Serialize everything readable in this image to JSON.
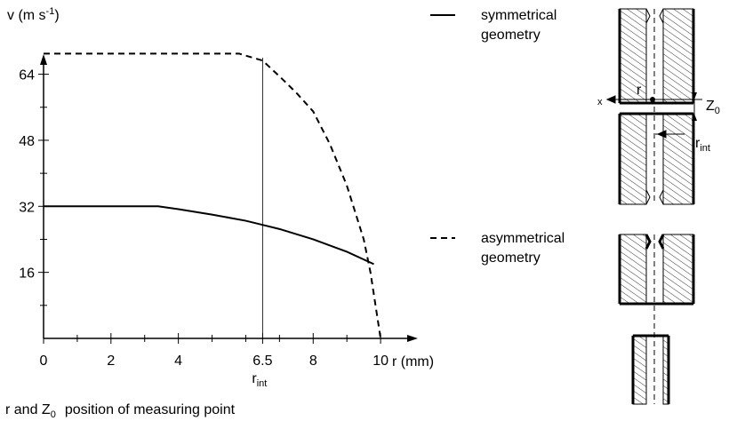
{
  "chart_data": {
    "type": "line",
    "y_label": {
      "text": "v (m s",
      "sup": "-1",
      "end": ")"
    },
    "x_label": "r (mm)",
    "xlim": [
      0,
      11
    ],
    "ylim": [
      0,
      68
    ],
    "xticks": [
      0,
      2,
      4,
      6.5,
      8,
      10
    ],
    "xminor": [
      1,
      3,
      5,
      6,
      7,
      9
    ],
    "yticks": [
      16,
      32,
      48,
      64
    ],
    "yminor": [
      8,
      24,
      40,
      56
    ],
    "marker_line": {
      "x": 6.5,
      "label": "r",
      "sub": "int"
    },
    "series": [
      {
        "name": [
          "symmetrical",
          "geometry"
        ],
        "dash": false,
        "color": "#000",
        "x": [
          0,
          3.4,
          4,
          5,
          6,
          6.5,
          7,
          8,
          9,
          9.8
        ],
        "values": [
          32,
          32,
          31.3,
          30,
          28.5,
          27.5,
          26.5,
          24,
          21,
          18
        ]
      },
      {
        "name": [
          "asymmetrical",
          "geometry"
        ],
        "dash": true,
        "color": "#000",
        "x": [
          0,
          5.8,
          6.5,
          7,
          7.5,
          8,
          8.5,
          9,
          9.5,
          9.7,
          10
        ],
        "values": [
          69,
          69,
          67.3,
          63.5,
          59.5,
          55,
          47,
          37,
          24,
          16,
          0
        ]
      }
    ],
    "diagram": {
      "x": "x",
      "r": "r",
      "z": "Z",
      "z_sub": "0",
      "rint": "r",
      "rint_sub": "int"
    },
    "footer": {
      "a": "r and Z",
      "sub": "0",
      "b": "position of measuring point"
    }
  }
}
